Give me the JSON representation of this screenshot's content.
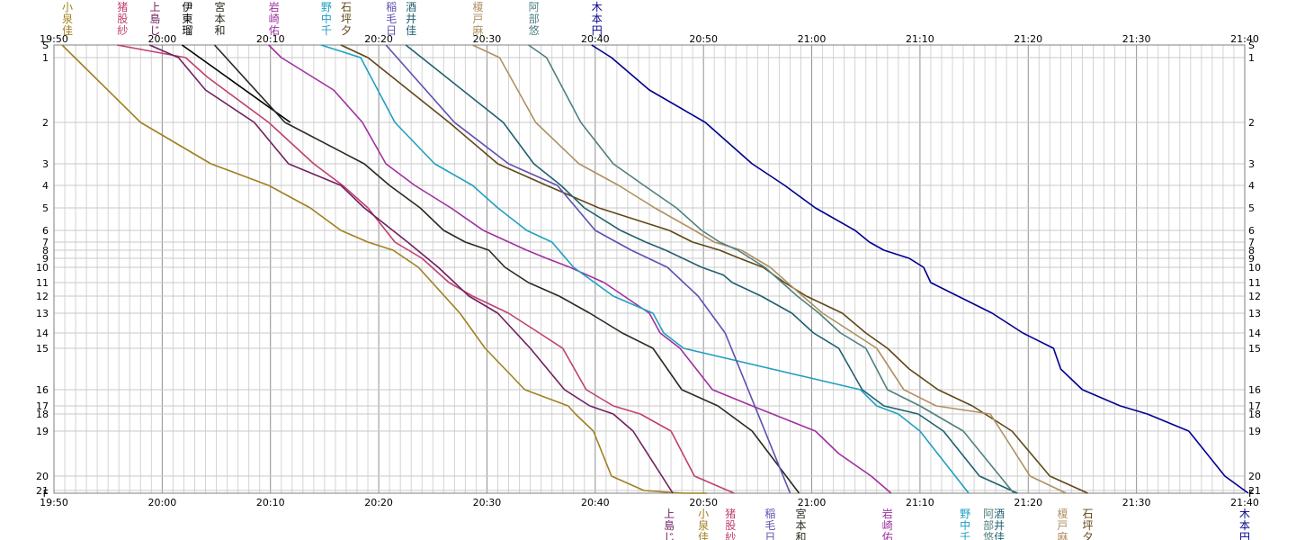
{
  "chart_data": {
    "type": "line",
    "time_ticks": [
      "19:50",
      "20:00",
      "20:10",
      "20:20",
      "20:30",
      "20:40",
      "20:50",
      "21:00",
      "21:10",
      "21:20",
      "21:30",
      "21:40"
    ],
    "x_range": [
      "19:50",
      "21:40"
    ],
    "controls": [
      "S",
      "1",
      "2",
      "3",
      "4",
      "5",
      "6",
      "7",
      "8",
      "9",
      "10",
      "11",
      "12",
      "13",
      "14",
      "15",
      "16",
      "17",
      "18",
      "19",
      "20",
      "21",
      "F"
    ],
    "control_positions": [
      0,
      1,
      2,
      3,
      4,
      5,
      6,
      7,
      8,
      9,
      10,
      11,
      12,
      13,
      14,
      15,
      16,
      17,
      18,
      19,
      20,
      21,
      22
    ],
    "grid": true,
    "series": [
      {
        "name": "小泉 佳",
        "color": "#a08020",
        "bottom": true,
        "times": [
          "19:50:45",
          "19:58:00",
          "20:04:30",
          "20:09:50",
          "20:13:40",
          "20:16:30",
          "20:19:00",
          "20:21:20",
          "20:23:40",
          "20:27:30",
          "20:29:50",
          "20:33:30",
          "20:37:30",
          "20:38:10",
          "20:39:50",
          "20:41:30",
          "20:44:30",
          "20:46:10",
          "20:48:10",
          "20:50:20"
        ],
        "ctrls": [
          0,
          2,
          3,
          4,
          5,
          6,
          7,
          8,
          10,
          13,
          15,
          16,
          17,
          18,
          19,
          20,
          21,
          21.5,
          22,
          22
        ]
      },
      {
        "name": "猪股 紗",
        "color": "#c04070",
        "bottom": true,
        "times": [
          "19:55:50",
          "20:02:10",
          "20:04:10",
          "20:09:50",
          "20:14:00",
          "20:16:40",
          "20:19:00",
          "20:21:30",
          "20:24:00",
          "20:26:30",
          "20:28:40",
          "20:32:00",
          "20:34:50",
          "20:37:00",
          "20:39:10",
          "20:41:40",
          "20:44:10",
          "20:47:00",
          "20:49:10",
          "20:52:50"
        ],
        "ctrls": [
          0,
          1,
          1.3,
          2,
          3,
          4,
          5,
          7,
          9,
          11,
          12,
          13,
          14,
          15,
          16,
          17,
          18,
          19,
          20,
          22
        ]
      },
      {
        "name": "上島 じ",
        "color": "#702060",
        "bottom": true,
        "times": [
          "19:58:50",
          "20:01:30",
          "20:04:00",
          "20:08:30",
          "20:11:40",
          "20:16:30",
          "20:18:40",
          "20:22:40",
          "20:25:30",
          "20:28:20",
          "20:31:00",
          "20:34:00",
          "20:37:10",
          "20:39:30",
          "20:41:40",
          "20:43:30",
          "20:47:10"
        ],
        "ctrls": [
          0,
          1,
          1.5,
          2,
          3,
          4,
          5,
          7,
          10,
          12,
          13,
          15,
          16,
          17,
          18,
          19,
          22
        ]
      },
      {
        "name": "伊東 瑠",
        "color": "#000000",
        "bottom": false,
        "times": [
          "20:01:50",
          "20:11:50"
        ],
        "ctrls": [
          0,
          2
        ]
      },
      {
        "name": "宮本 和",
        "color": "#2a2a20",
        "bottom": true,
        "times": [
          "20:04:50",
          "20:11:20",
          "20:18:40",
          "20:21:00",
          "20:23:50",
          "20:26:00",
          "20:28:00",
          "20:30:10",
          "20:31:40",
          "20:33:50",
          "20:36:40",
          "20:39:30",
          "20:42:30",
          "20:45:20",
          "20:48:00",
          "20:51:20",
          "20:54:30",
          "20:58:50"
        ],
        "ctrls": [
          0,
          2,
          3,
          4,
          5,
          6,
          7,
          8,
          10,
          11,
          12,
          13,
          14,
          15,
          16,
          17,
          19,
          22
        ]
      },
      {
        "name": "岩崎 佑",
        "color": "#a030a0",
        "bottom": true,
        "times": [
          "20:09:50",
          "20:11:00",
          "20:15:50",
          "20:18:30",
          "20:20:40",
          "20:23:20",
          "20:26:40",
          "20:29:40",
          "20:33:40",
          "20:35:30",
          "20:37:40",
          "20:40:50",
          "20:42:40",
          "20:45:00",
          "20:46:00",
          "20:47:50",
          "20:50:50",
          "20:54:30",
          "21:00:20",
          "21:02:30",
          "21:05:30",
          "21:07:20"
        ],
        "ctrls": [
          0,
          1,
          1.5,
          2,
          3,
          4,
          5,
          6,
          8,
          9,
          10,
          11,
          12,
          13,
          14,
          15,
          16,
          17,
          19,
          19.5,
          20,
          22
        ]
      },
      {
        "name": "野中 千",
        "color": "#20a0c0",
        "bottom": true,
        "times": [
          "20:14:40",
          "20:18:20",
          "20:21:30",
          "20:25:10",
          "20:28:40",
          "20:31:00",
          "20:33:40",
          "20:36:00",
          "20:38:00",
          "20:41:40",
          "20:45:20",
          "20:46:20",
          "20:48:10",
          "21:04:30",
          "21:06:00",
          "21:08:00",
          "21:10:00",
          "21:14:30"
        ],
        "ctrls": [
          0,
          1,
          2,
          3,
          4,
          5,
          6,
          7,
          10,
          12,
          13,
          14,
          15,
          16,
          17,
          18,
          19,
          22
        ]
      },
      {
        "name": "石坪 夕",
        "color": "#604818",
        "bottom": true,
        "times": [
          "20:16:30",
          "20:19:00",
          "20:26:30",
          "20:31:00",
          "20:35:30",
          "20:40:20",
          "20:46:50",
          "20:49:00",
          "20:51:30",
          "20:53:20",
          "20:55:30",
          "20:57:30",
          "20:59:30",
          "21:02:50",
          "21:05:00",
          "21:07:00",
          "21:09:00",
          "21:11:40",
          "21:14:50",
          "21:18:30",
          "21:22:00",
          "21:25:30"
        ],
        "ctrls": [
          0,
          1,
          2,
          3,
          4,
          5,
          6,
          7,
          8,
          9,
          10,
          11,
          12,
          13,
          14,
          15,
          15.5,
          16,
          17,
          19,
          20,
          22
        ]
      },
      {
        "name": "稲毛 日",
        "color": "#6050b0",
        "bottom": true,
        "times": [
          "20:20:40",
          "20:27:00",
          "20:32:00",
          "20:36:30",
          "20:40:00",
          "20:43:20",
          "20:46:40",
          "20:49:30",
          "20:52:00",
          "20:58:00"
        ],
        "ctrls": [
          0,
          2,
          3,
          4,
          6,
          8,
          10,
          12,
          14,
          22
        ]
      },
      {
        "name": "酒井 佳",
        "color": "#206070",
        "bottom": true,
        "times": [
          "20:22:30",
          "20:31:30",
          "20:34:20",
          "20:36:50",
          "20:39:00",
          "20:42:20",
          "20:44:40",
          "20:46:30",
          "20:49:50",
          "20:51:50",
          "20:52:40",
          "20:55:20",
          "20:58:10",
          "21:00:10",
          "21:02:30",
          "21:04:40",
          "21:06:40",
          "21:09:50",
          "21:12:10",
          "21:15:30",
          "21:19:00"
        ],
        "ctrls": [
          0,
          2,
          3,
          4,
          5,
          6,
          7,
          8,
          10,
          10.5,
          11,
          12,
          13,
          14,
          15,
          16,
          17,
          18,
          19,
          20,
          22
        ]
      },
      {
        "name": "榎戸 麻",
        "color": "#b09060",
        "bottom": true,
        "times": [
          "20:28:40",
          "20:31:10",
          "20:34:30",
          "20:38:30",
          "20:42:10",
          "20:45:30",
          "20:49:10",
          "20:51:00",
          "20:53:30",
          "20:56:10",
          "20:59:10",
          "21:01:00",
          "21:03:50",
          "21:06:00",
          "21:08:30",
          "21:11:30",
          "21:16:30",
          "21:20:10",
          "21:23:30"
        ],
        "ctrls": [
          0,
          1,
          2,
          3,
          4,
          5,
          6,
          7,
          8,
          10,
          12,
          13,
          14,
          15,
          16,
          17,
          18,
          20,
          22
        ]
      },
      {
        "name": "阿部 悠",
        "color": "#508080",
        "bottom": true,
        "times": [
          "20:33:50",
          "20:35:30",
          "20:38:40",
          "20:41:40",
          "20:44:30",
          "20:47:30",
          "20:49:50",
          "20:51:30",
          "20:53:10",
          "20:55:40",
          "20:58:40",
          "21:00:40",
          "21:02:40",
          "21:05:00",
          "21:07:00",
          "21:10:00",
          "21:14:00",
          "21:18:40"
        ],
        "ctrls": [
          0,
          1,
          2,
          3,
          4,
          5,
          6,
          7,
          8,
          10,
          12,
          13,
          14,
          15,
          16,
          17,
          19,
          22
        ]
      },
      {
        "name": "木本 円",
        "color": "#000090",
        "bottom": true,
        "times": [
          "20:39:40",
          "20:41:30",
          "20:45:00",
          "20:50:10",
          "20:54:30",
          "20:57:30",
          "21:00:20",
          "21:04:00",
          "21:05:20",
          "21:06:40",
          "21:09:00",
          "21:10:20",
          "21:11:00",
          "21:13:30",
          "21:16:40",
          "21:19:30",
          "21:22:20",
          "21:23:00",
          "21:25:00",
          "21:28:30",
          "21:31:00",
          "21:34:50",
          "21:38:10",
          "21:40:20"
        ],
        "ctrls": [
          0,
          1,
          1.5,
          2,
          3,
          4,
          5,
          6,
          7,
          8,
          9,
          10,
          11,
          12,
          13,
          14,
          15,
          15.5,
          16,
          17,
          18,
          19,
          20,
          22
        ]
      }
    ],
    "bottom_labels": [
      {
        "name": "上島 じ",
        "time": "20:47:10"
      },
      {
        "name": "小泉 佳",
        "time": "20:50:20"
      },
      {
        "name": "猪股 紗",
        "time": "20:52:50"
      },
      {
        "name": "稲毛 日",
        "time": "20:56:30"
      },
      {
        "name": "宮本 和",
        "time": "20:59:20"
      },
      {
        "name": "岩崎 佑",
        "time": "21:07:20"
      },
      {
        "name": "野中 千",
        "time": "21:14:30"
      },
      {
        "name": "阿部 悠",
        "time": "21:16:40"
      },
      {
        "name": "酒井 佳",
        "time": "21:17:40"
      },
      {
        "name": "榎戸 麻",
        "time": "21:23:30"
      },
      {
        "name": "石坪 夕",
        "time": "21:25:50"
      },
      {
        "name": "木本 円",
        "time": "21:40:20"
      }
    ]
  }
}
